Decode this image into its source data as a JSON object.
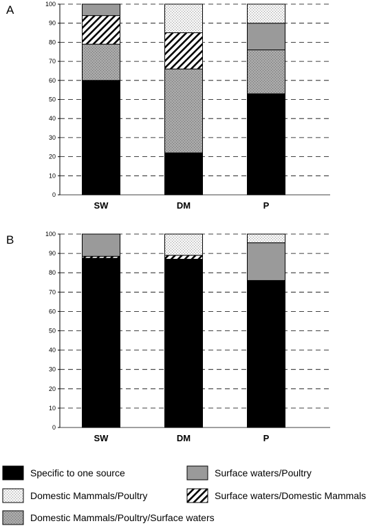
{
  "chart_data": [
    {
      "panel": "A",
      "type": "bar",
      "stacked": true,
      "categories": [
        "SW",
        "DM",
        "P"
      ],
      "ylim": [
        0,
        100
      ],
      "yticks": [
        0,
        10,
        20,
        30,
        40,
        50,
        60,
        70,
        80,
        90,
        100
      ],
      "grid": "dashed-horizontal",
      "series": [
        {
          "name": "Specific to one source",
          "key": "specific",
          "values": [
            60,
            22,
            53
          ]
        },
        {
          "name": "Domestic Mammals/Poultry/Surface waters",
          "key": "dmpsw",
          "values": [
            19,
            44,
            23
          ]
        },
        {
          "name": "Surface waters/Domestic Mammals",
          "key": "swdm",
          "values": [
            15,
            19,
            0
          ]
        },
        {
          "name": "Surface waters/Poultry",
          "key": "swp",
          "values": [
            6,
            0,
            14
          ]
        },
        {
          "name": "Domestic Mammals/Poultry",
          "key": "dmp",
          "values": [
            0,
            15,
            10
          ]
        }
      ]
    },
    {
      "panel": "B",
      "type": "bar",
      "stacked": true,
      "categories": [
        "SW",
        "DM",
        "P"
      ],
      "ylim": [
        0,
        100
      ],
      "yticks": [
        0,
        10,
        20,
        30,
        40,
        50,
        60,
        70,
        80,
        90,
        100
      ],
      "grid": "dashed-horizontal",
      "series": [
        {
          "name": "Specific to one source",
          "key": "specific",
          "values": [
            87.5,
            87,
            76
          ]
        },
        {
          "name": "Domestic Mammals/Poultry/Surface waters",
          "key": "dmpsw",
          "values": [
            0,
            0,
            0
          ]
        },
        {
          "name": "Surface waters/Domestic Mammals",
          "key": "swdm",
          "values": [
            1,
            2,
            0
          ]
        },
        {
          "name": "Surface waters/Poultry",
          "key": "swp",
          "values": [
            11.5,
            0,
            19.5
          ]
        },
        {
          "name": "Domestic Mammals/Poultry",
          "key": "dmp",
          "values": [
            0,
            11,
            4.5
          ]
        }
      ]
    }
  ],
  "legend": {
    "placement": "bottom",
    "items": [
      {
        "key": "specific",
        "label": "Specific to one source"
      },
      {
        "key": "swp",
        "label": "Surface waters/Poultry"
      },
      {
        "key": "dmp",
        "label": "Domestic Mammals/Poultry"
      },
      {
        "key": "swdm",
        "label": "Surface waters/Domestic Mammals"
      },
      {
        "key": "dmpsw",
        "label": "Domestic Mammals/Poultry/Surface waters"
      }
    ]
  },
  "colors": {
    "specific": "#000000",
    "swp": "#9a9a9a",
    "dmp": "#e2e2e2",
    "swdm": "#ffffff",
    "dmpsw": "#a6a6a6"
  }
}
